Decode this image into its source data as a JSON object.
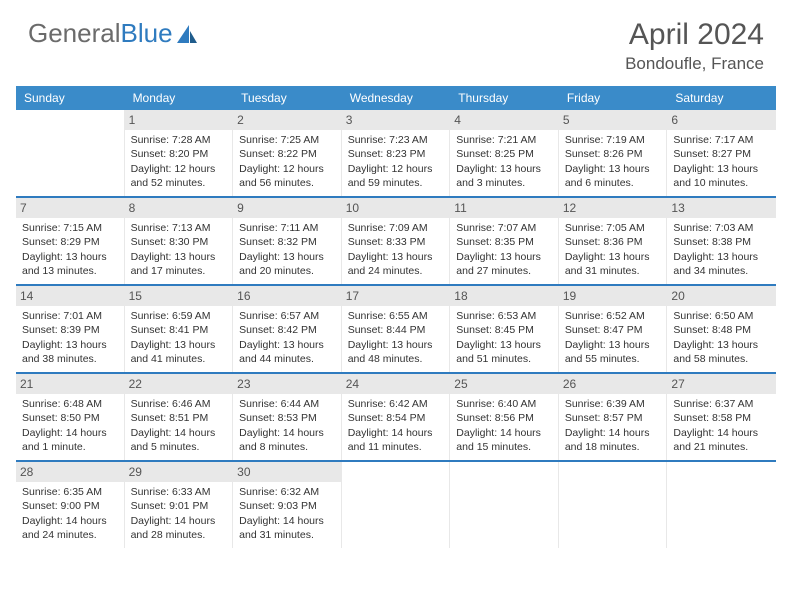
{
  "brand": {
    "part1": "General",
    "part2": "Blue"
  },
  "title": "April 2024",
  "subtitle": "Bondoufle, France",
  "colors": {
    "header_bg": "#3a8bc9",
    "accent_border": "#2f7bbf",
    "daynum_bg": "#e8e8e8",
    "text": "#333333",
    "title_text": "#555555"
  },
  "day_headers": [
    "Sunday",
    "Monday",
    "Tuesday",
    "Wednesday",
    "Thursday",
    "Friday",
    "Saturday"
  ],
  "weeks": [
    [
      {
        "n": "",
        "l": [
          "",
          "",
          ""
        ]
      },
      {
        "n": "1",
        "l": [
          "Sunrise: 7:28 AM",
          "Sunset: 8:20 PM",
          "Daylight: 12 hours and 52 minutes."
        ]
      },
      {
        "n": "2",
        "l": [
          "Sunrise: 7:25 AM",
          "Sunset: 8:22 PM",
          "Daylight: 12 hours and 56 minutes."
        ]
      },
      {
        "n": "3",
        "l": [
          "Sunrise: 7:23 AM",
          "Sunset: 8:23 PM",
          "Daylight: 12 hours and 59 minutes."
        ]
      },
      {
        "n": "4",
        "l": [
          "Sunrise: 7:21 AM",
          "Sunset: 8:25 PM",
          "Daylight: 13 hours and 3 minutes."
        ]
      },
      {
        "n": "5",
        "l": [
          "Sunrise: 7:19 AM",
          "Sunset: 8:26 PM",
          "Daylight: 13 hours and 6 minutes."
        ]
      },
      {
        "n": "6",
        "l": [
          "Sunrise: 7:17 AM",
          "Sunset: 8:27 PM",
          "Daylight: 13 hours and 10 minutes."
        ]
      }
    ],
    [
      {
        "n": "7",
        "l": [
          "Sunrise: 7:15 AM",
          "Sunset: 8:29 PM",
          "Daylight: 13 hours and 13 minutes."
        ]
      },
      {
        "n": "8",
        "l": [
          "Sunrise: 7:13 AM",
          "Sunset: 8:30 PM",
          "Daylight: 13 hours and 17 minutes."
        ]
      },
      {
        "n": "9",
        "l": [
          "Sunrise: 7:11 AM",
          "Sunset: 8:32 PM",
          "Daylight: 13 hours and 20 minutes."
        ]
      },
      {
        "n": "10",
        "l": [
          "Sunrise: 7:09 AM",
          "Sunset: 8:33 PM",
          "Daylight: 13 hours and 24 minutes."
        ]
      },
      {
        "n": "11",
        "l": [
          "Sunrise: 7:07 AM",
          "Sunset: 8:35 PM",
          "Daylight: 13 hours and 27 minutes."
        ]
      },
      {
        "n": "12",
        "l": [
          "Sunrise: 7:05 AM",
          "Sunset: 8:36 PM",
          "Daylight: 13 hours and 31 minutes."
        ]
      },
      {
        "n": "13",
        "l": [
          "Sunrise: 7:03 AM",
          "Sunset: 8:38 PM",
          "Daylight: 13 hours and 34 minutes."
        ]
      }
    ],
    [
      {
        "n": "14",
        "l": [
          "Sunrise: 7:01 AM",
          "Sunset: 8:39 PM",
          "Daylight: 13 hours and 38 minutes."
        ]
      },
      {
        "n": "15",
        "l": [
          "Sunrise: 6:59 AM",
          "Sunset: 8:41 PM",
          "Daylight: 13 hours and 41 minutes."
        ]
      },
      {
        "n": "16",
        "l": [
          "Sunrise: 6:57 AM",
          "Sunset: 8:42 PM",
          "Daylight: 13 hours and 44 minutes."
        ]
      },
      {
        "n": "17",
        "l": [
          "Sunrise: 6:55 AM",
          "Sunset: 8:44 PM",
          "Daylight: 13 hours and 48 minutes."
        ]
      },
      {
        "n": "18",
        "l": [
          "Sunrise: 6:53 AM",
          "Sunset: 8:45 PM",
          "Daylight: 13 hours and 51 minutes."
        ]
      },
      {
        "n": "19",
        "l": [
          "Sunrise: 6:52 AM",
          "Sunset: 8:47 PM",
          "Daylight: 13 hours and 55 minutes."
        ]
      },
      {
        "n": "20",
        "l": [
          "Sunrise: 6:50 AM",
          "Sunset: 8:48 PM",
          "Daylight: 13 hours and 58 minutes."
        ]
      }
    ],
    [
      {
        "n": "21",
        "l": [
          "Sunrise: 6:48 AM",
          "Sunset: 8:50 PM",
          "Daylight: 14 hours and 1 minute."
        ]
      },
      {
        "n": "22",
        "l": [
          "Sunrise: 6:46 AM",
          "Sunset: 8:51 PM",
          "Daylight: 14 hours and 5 minutes."
        ]
      },
      {
        "n": "23",
        "l": [
          "Sunrise: 6:44 AM",
          "Sunset: 8:53 PM",
          "Daylight: 14 hours and 8 minutes."
        ]
      },
      {
        "n": "24",
        "l": [
          "Sunrise: 6:42 AM",
          "Sunset: 8:54 PM",
          "Daylight: 14 hours and 11 minutes."
        ]
      },
      {
        "n": "25",
        "l": [
          "Sunrise: 6:40 AM",
          "Sunset: 8:56 PM",
          "Daylight: 14 hours and 15 minutes."
        ]
      },
      {
        "n": "26",
        "l": [
          "Sunrise: 6:39 AM",
          "Sunset: 8:57 PM",
          "Daylight: 14 hours and 18 minutes."
        ]
      },
      {
        "n": "27",
        "l": [
          "Sunrise: 6:37 AM",
          "Sunset: 8:58 PM",
          "Daylight: 14 hours and 21 minutes."
        ]
      }
    ],
    [
      {
        "n": "28",
        "l": [
          "Sunrise: 6:35 AM",
          "Sunset: 9:00 PM",
          "Daylight: 14 hours and 24 minutes."
        ]
      },
      {
        "n": "29",
        "l": [
          "Sunrise: 6:33 AM",
          "Sunset: 9:01 PM",
          "Daylight: 14 hours and 28 minutes."
        ]
      },
      {
        "n": "30",
        "l": [
          "Sunrise: 6:32 AM",
          "Sunset: 9:03 PM",
          "Daylight: 14 hours and 31 minutes."
        ]
      },
      {
        "n": "",
        "l": [
          "",
          "",
          ""
        ]
      },
      {
        "n": "",
        "l": [
          "",
          "",
          ""
        ]
      },
      {
        "n": "",
        "l": [
          "",
          "",
          ""
        ]
      },
      {
        "n": "",
        "l": [
          "",
          "",
          ""
        ]
      }
    ]
  ]
}
